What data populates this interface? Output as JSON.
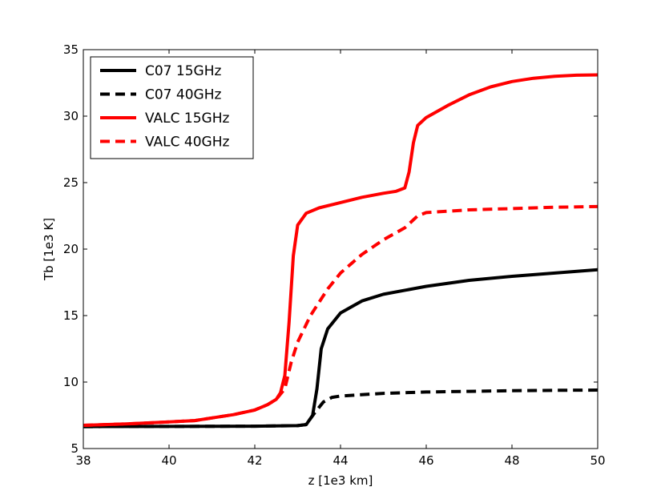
{
  "chart_data": {
    "type": "line",
    "title": "",
    "xlabel": "z [1e3 km]",
    "ylabel": "Tb [1e3 K]",
    "xlim": [
      38,
      50
    ],
    "ylim": [
      5,
      35
    ],
    "xticks": [
      38,
      40,
      42,
      44,
      46,
      48,
      50
    ],
    "yticks": [
      5,
      10,
      15,
      20,
      25,
      30,
      35
    ],
    "grid": false,
    "legend_position": "top-left",
    "series": [
      {
        "name": "C07 15GHz",
        "color": "#000000",
        "style": "solid",
        "points": [
          [
            38,
            6.65
          ],
          [
            40,
            6.66
          ],
          [
            42,
            6.68
          ],
          [
            43,
            6.72
          ],
          [
            43.2,
            6.8
          ],
          [
            43.35,
            7.5
          ],
          [
            43.45,
            9.5
          ],
          [
            43.55,
            12.5
          ],
          [
            43.7,
            14.0
          ],
          [
            44,
            15.2
          ],
          [
            44.5,
            16.1
          ],
          [
            45,
            16.6
          ],
          [
            46,
            17.2
          ],
          [
            47,
            17.65
          ],
          [
            48,
            17.95
          ],
          [
            49,
            18.2
          ],
          [
            50,
            18.45
          ]
        ]
      },
      {
        "name": "C07 40GHz",
        "color": "#000000",
        "style": "dashed",
        "points": [
          [
            38,
            6.65
          ],
          [
            40,
            6.66
          ],
          [
            42,
            6.68
          ],
          [
            43,
            6.72
          ],
          [
            43.2,
            6.8
          ],
          [
            43.4,
            7.7
          ],
          [
            43.6,
            8.5
          ],
          [
            43.8,
            8.85
          ],
          [
            44,
            8.95
          ],
          [
            45,
            9.15
          ],
          [
            46,
            9.25
          ],
          [
            47,
            9.3
          ],
          [
            48,
            9.35
          ],
          [
            49,
            9.38
          ],
          [
            50,
            9.4
          ]
        ]
      },
      {
        "name": "VALC 15GHz",
        "color": "#ff0000",
        "style": "solid",
        "points": [
          [
            38,
            6.75
          ],
          [
            39,
            6.85
          ],
          [
            40,
            7.0
          ],
          [
            40.6,
            7.1
          ],
          [
            41,
            7.3
          ],
          [
            41.5,
            7.55
          ],
          [
            42,
            7.9
          ],
          [
            42.3,
            8.3
          ],
          [
            42.5,
            8.7
          ],
          [
            42.6,
            9.2
          ],
          [
            42.7,
            10.5
          ],
          [
            42.8,
            14.5
          ],
          [
            42.9,
            19.5
          ],
          [
            43,
            21.8
          ],
          [
            43.2,
            22.7
          ],
          [
            43.5,
            23.1
          ],
          [
            44,
            23.5
          ],
          [
            44.5,
            23.9
          ],
          [
            45,
            24.2
          ],
          [
            45.3,
            24.35
          ],
          [
            45.5,
            24.6
          ],
          [
            45.6,
            25.8
          ],
          [
            45.7,
            28.0
          ],
          [
            45.8,
            29.3
          ],
          [
            46,
            29.9
          ],
          [
            46.5,
            30.8
          ],
          [
            47,
            31.6
          ],
          [
            47.5,
            32.2
          ],
          [
            48,
            32.6
          ],
          [
            48.5,
            32.85
          ],
          [
            49,
            33.0
          ],
          [
            49.5,
            33.08
          ],
          [
            50,
            33.1
          ]
        ]
      },
      {
        "name": "VALC 40GHz",
        "color": "#ff0000",
        "style": "dashed",
        "points": [
          [
            38,
            6.75
          ],
          [
            39,
            6.85
          ],
          [
            40,
            7.0
          ],
          [
            40.6,
            7.1
          ],
          [
            41,
            7.3
          ],
          [
            41.5,
            7.55
          ],
          [
            42,
            7.9
          ],
          [
            42.3,
            8.3
          ],
          [
            42.5,
            8.7
          ],
          [
            42.7,
            9.5
          ],
          [
            42.85,
            11.5
          ],
          [
            43,
            13.0
          ],
          [
            43.3,
            15.0
          ],
          [
            43.7,
            17.0
          ],
          [
            44,
            18.2
          ],
          [
            44.5,
            19.6
          ],
          [
            45,
            20.7
          ],
          [
            45.5,
            21.6
          ],
          [
            45.8,
            22.5
          ],
          [
            46,
            22.75
          ],
          [
            47,
            22.95
          ],
          [
            48,
            23.05
          ],
          [
            49,
            23.15
          ],
          [
            50,
            23.2
          ]
        ]
      }
    ]
  }
}
